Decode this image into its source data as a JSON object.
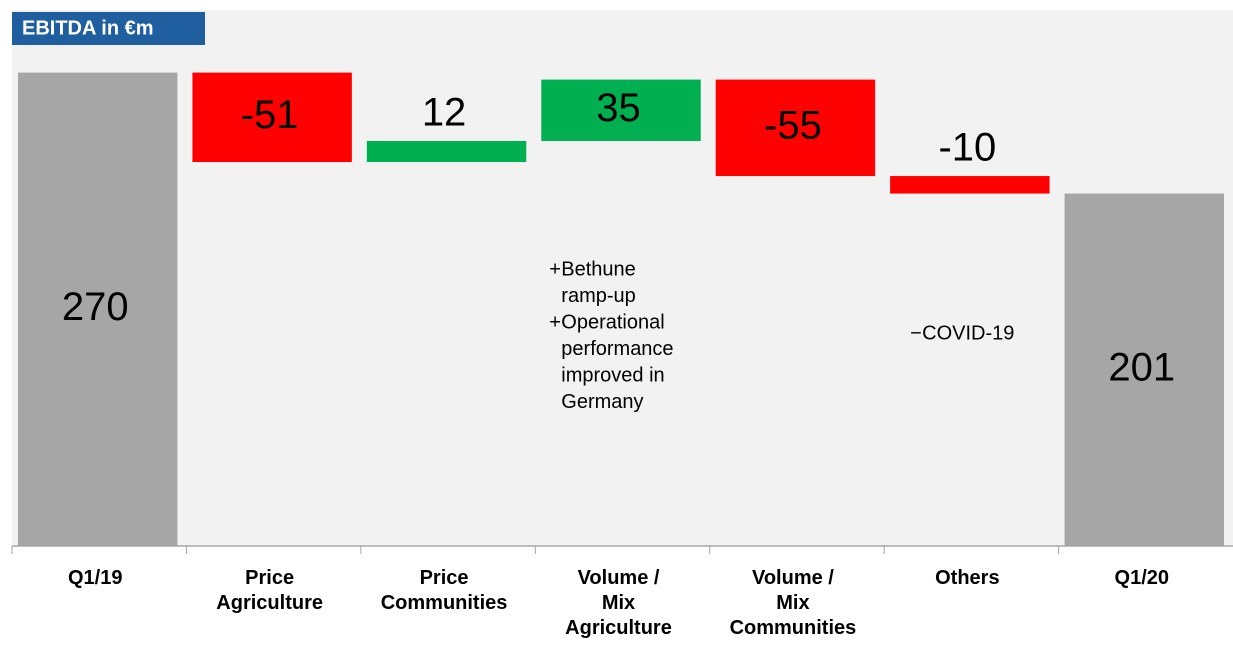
{
  "chart_data": {
    "type": "waterfall",
    "title": "EBITDA in €m",
    "categories": [
      "Q1/19",
      "Price\nAgriculture",
      "Price\nCommunities",
      "Volume /\nMix\nAgriculture",
      "Volume /\nMix\nCommunities",
      "Others",
      "Q1/20"
    ],
    "values": [
      270,
      -51,
      12,
      35,
      -55,
      -10,
      201
    ],
    "bar_kinds": [
      "total",
      "change",
      "change",
      "change",
      "change",
      "change",
      "total"
    ],
    "colors": {
      "total": "#a6a6a6",
      "increase": "#00b050",
      "decrease": "#ff0000"
    },
    "ylim": [
      0,
      300
    ],
    "annotations": [
      {
        "category": 3,
        "items": [
          {
            "marker": "+",
            "lines": [
              "Bethune",
              "ramp-up"
            ]
          },
          {
            "marker": "+",
            "lines": [
              "Operational",
              "performance",
              "improved in",
              "Germany"
            ]
          }
        ]
      },
      {
        "category": 5,
        "items": [
          {
            "marker": "−",
            "lines": [
              "COVID-19"
            ]
          }
        ]
      }
    ]
  }
}
